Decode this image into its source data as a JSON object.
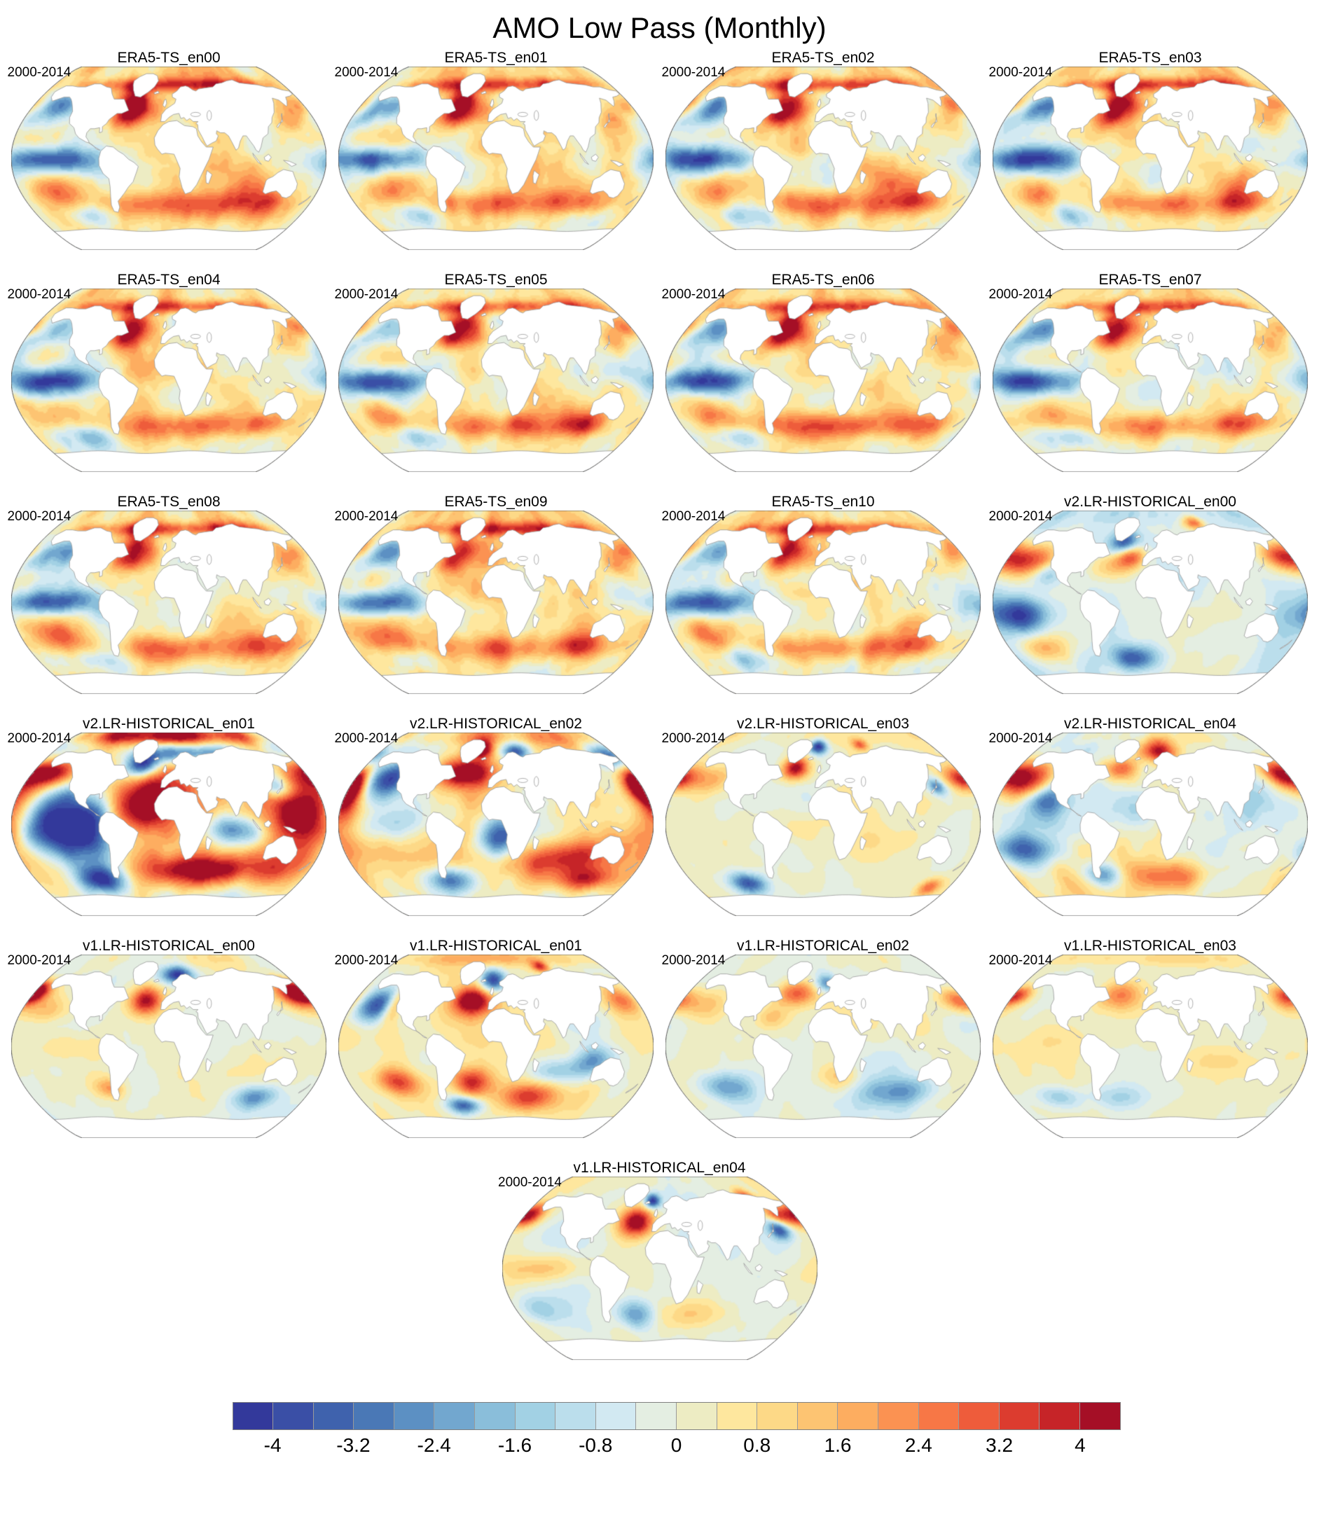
{
  "figure": {
    "title": "AMO Low Pass (Monthly)"
  },
  "colorbar": {
    "tick_labels": [
      "-4",
      "-3.2",
      "-2.4",
      "-1.6",
      "-0.8",
      "0",
      "0.8",
      "1.6",
      "2.4",
      "3.2",
      "4"
    ],
    "vmin": -4.4,
    "vmax": 4.4,
    "step": 0.4,
    "colors": [
      "#33399b",
      "#3a4fa6",
      "#3f62ad",
      "#4a78b6",
      "#5c90c3",
      "#72a7cf",
      "#8abeda",
      "#a2d1e4",
      "#bbdeec",
      "#d2e9f2",
      "#e4eee2",
      "#edecc3",
      "#fee79e",
      "#fdd987",
      "#fdc472",
      "#fdad60",
      "#fb9252",
      "#f77746",
      "#ee5c3b",
      "#dc3c2f",
      "#c62428",
      "#a50f26"
    ]
  },
  "feature_sets": {
    "era5": [
      [
        0,
        86,
        200,
        7,
        0.7
      ],
      [
        -50,
        72,
        34,
        5,
        2.8
      ],
      [
        30,
        72,
        45,
        5,
        2.6
      ],
      [
        115,
        72,
        40,
        5,
        2.4
      ],
      [
        -125,
        71,
        22,
        4,
        1.8
      ],
      [
        -45,
        57,
        16,
        9,
        3.2
      ],
      [
        -55,
        40,
        14,
        8,
        2.6
      ],
      [
        -28,
        46,
        20,
        10,
        1.6
      ],
      [
        -20,
        14,
        26,
        12,
        1.0
      ],
      [
        -115,
        0,
        36,
        9,
        -2.8
      ],
      [
        -155,
        -2,
        28,
        8,
        -2.2
      ],
      [
        -172,
        42,
        14,
        12,
        -1.4
      ],
      [
        -140,
        50,
        20,
        10,
        -2.6
      ],
      [
        176,
        51,
        16,
        9,
        2.8
      ],
      [
        146,
        36,
        14,
        9,
        1.4
      ],
      [
        15,
        -45,
        80,
        9,
        2.4
      ],
      [
        -135,
        -33,
        22,
        10,
        1.9
      ],
      [
        -105,
        -55,
        25,
        8,
        -1.7
      ],
      [
        90,
        -28,
        28,
        12,
        1.2
      ],
      [
        120,
        -43,
        22,
        9,
        1.7
      ],
      [
        62,
        -8,
        20,
        10,
        0.8
      ]
    ]
  },
  "panels": [
    {
      "title": "ERA5-TS_en00",
      "period": "2000-2014",
      "render": {
        "base": "era5",
        "seed": 11,
        "amp": 1.15,
        "bias": 0.3,
        "freq": 10,
        "features": []
      }
    },
    {
      "title": "ERA5-TS_en01",
      "period": "2000-2014",
      "render": {
        "base": "era5",
        "seed": 12,
        "amp": 1.15,
        "bias": 0.3,
        "freq": 10,
        "features": []
      }
    },
    {
      "title": "ERA5-TS_en02",
      "period": "2000-2014",
      "render": {
        "base": "era5",
        "seed": 13,
        "amp": 1.15,
        "bias": 0.35,
        "freq": 10,
        "features": []
      }
    },
    {
      "title": "ERA5-TS_en03",
      "period": "2000-2014",
      "render": {
        "base": "era5",
        "seed": 14,
        "amp": 1.15,
        "bias": 0.25,
        "freq": 10,
        "features": []
      }
    },
    {
      "title": "ERA5-TS_en04",
      "period": "2000-2014",
      "render": {
        "base": "era5",
        "seed": 15,
        "amp": 1.15,
        "bias": 0.2,
        "freq": 10,
        "features": []
      }
    },
    {
      "title": "ERA5-TS_en05",
      "period": "2000-2014",
      "render": {
        "base": "era5",
        "seed": 16,
        "amp": 1.15,
        "bias": 0.25,
        "freq": 10,
        "features": []
      }
    },
    {
      "title": "ERA5-TS_en06",
      "period": "2000-2014",
      "render": {
        "base": "era5",
        "seed": 17,
        "amp": 1.15,
        "bias": 0.3,
        "freq": 10,
        "features": []
      }
    },
    {
      "title": "ERA5-TS_en07",
      "period": "2000-2014",
      "render": {
        "base": "era5",
        "seed": 18,
        "amp": 1.0,
        "bias": 0.05,
        "freq": 10,
        "features": []
      }
    },
    {
      "title": "ERA5-TS_en08",
      "period": "2000-2014",
      "render": {
        "base": "era5",
        "seed": 19,
        "amp": 1.15,
        "bias": 0.25,
        "freq": 10,
        "features": []
      }
    },
    {
      "title": "ERA5-TS_en09",
      "period": "2000-2014",
      "render": {
        "base": "era5",
        "seed": 20,
        "amp": 1.15,
        "bias": 0.3,
        "freq": 10,
        "features": []
      }
    },
    {
      "title": "ERA5-TS_en10",
      "period": "2000-2014",
      "render": {
        "base": "era5",
        "seed": 21,
        "amp": 1.15,
        "bias": 0.15,
        "freq": 10,
        "features": []
      }
    },
    {
      "title": "v2.LR-HISTORICAL_en00",
      "period": "2000-2014",
      "render": {
        "base": null,
        "seed": 31,
        "amp": 1.1,
        "bias": -0.35,
        "freq": 5,
        "features": [
          [
            -150,
            40,
            24,
            12,
            3.6
          ],
          [
            -122,
            28,
            14,
            9,
            -2.2
          ],
          [
            -35,
            58,
            15,
            8,
            -3.6
          ],
          [
            -25,
            46,
            13,
            8,
            3.4
          ],
          [
            -45,
            34,
            20,
            10,
            1.6
          ],
          [
            72,
            78,
            12,
            5,
            3.2
          ],
          [
            166,
            45,
            20,
            10,
            3.6
          ],
          [
            -152,
            -12,
            28,
            12,
            -3.4
          ],
          [
            -138,
            -45,
            22,
            10,
            2.0
          ],
          [
            -22,
            -55,
            22,
            9,
            -3.4
          ],
          [
            80,
            -12,
            26,
            10,
            0.7
          ],
          [
            0,
            86,
            200,
            6,
            -0.5
          ]
        ]
      }
    },
    {
      "title": "v2.LR-HISTORICAL_en01",
      "period": "2000-2014",
      "render": {
        "base": null,
        "seed": 32,
        "amp": 3.0,
        "bias": 0.5,
        "freq": 4,
        "features": [
          [
            -130,
            -2,
            45,
            26,
            -5
          ],
          [
            -152,
            50,
            24,
            10,
            5
          ],
          [
            -28,
            22,
            30,
            20,
            5
          ],
          [
            -36,
            58,
            17,
            8,
            -5
          ],
          [
            25,
            70,
            55,
            7,
            -4.5
          ],
          [
            150,
            8,
            32,
            24,
            5
          ],
          [
            132,
            36,
            13,
            8,
            -3.5
          ],
          [
            55,
            -45,
            60,
            12,
            5
          ],
          [
            -92,
            -55,
            24,
            10,
            -4.5
          ],
          [
            70,
            -6,
            24,
            10,
            -4
          ],
          [
            0,
            87,
            200,
            6,
            3
          ]
        ]
      }
    },
    {
      "title": "v2.LR-HISTORICAL_en02",
      "period": "2000-2014",
      "render": {
        "base": null,
        "seed": 33,
        "amp": 1.7,
        "bias": 0.45,
        "freq": 5,
        "features": [
          [
            -142,
            44,
            22,
            12,
            -4.2
          ],
          [
            -176,
            28,
            12,
            18,
            3.6
          ],
          [
            -40,
            50,
            26,
            10,
            4.2
          ],
          [
            -22,
            74,
            12,
            6,
            4.2
          ],
          [
            30,
            71,
            14,
            6,
            -3.8
          ],
          [
            -118,
            -2,
            34,
            12,
            -1.8
          ],
          [
            4,
            -12,
            16,
            14,
            -4
          ],
          [
            72,
            -35,
            46,
            14,
            4
          ],
          [
            -58,
            -55,
            24,
            9,
            -3.8
          ],
          [
            168,
            66,
            18,
            8,
            -3.8
          ],
          [
            177,
            38,
            14,
            10,
            4
          ],
          [
            125,
            -55,
            30,
            8,
            3
          ],
          [
            0,
            86,
            200,
            6,
            1.2
          ]
        ]
      }
    },
    {
      "title": "v2.LR-HISTORICAL_en03",
      "period": "2000-2014",
      "render": {
        "base": null,
        "seed": 34,
        "amp": 0.65,
        "bias": 0.05,
        "freq": 5,
        "features": [
          [
            -37,
            55,
            13,
            8,
            4.4
          ],
          [
            -8,
            76,
            10,
            5,
            -4.4
          ],
          [
            62,
            78,
            9,
            4,
            2.6
          ],
          [
            -146,
            44,
            20,
            10,
            1.9
          ],
          [
            176,
            44,
            14,
            8,
            3.4
          ],
          [
            140,
            37,
            8,
            6,
            -3
          ],
          [
            -103,
            -58,
            17,
            7,
            -3.6
          ],
          [
            152,
            -62,
            11,
            6,
            2.6
          ],
          [
            -30,
            0,
            26,
            12,
            0.8
          ],
          [
            82,
            -20,
            30,
            12,
            0.7
          ],
          [
            0,
            86,
            200,
            6,
            0.5
          ]
        ]
      }
    },
    {
      "title": "v2.LR-HISTORICAL_en04",
      "period": "2000-2014",
      "render": {
        "base": null,
        "seed": 35,
        "amp": 1.5,
        "bias": -0.25,
        "freq": 5,
        "features": [
          [
            -153,
            42,
            24,
            12,
            3.9
          ],
          [
            -120,
            24,
            18,
            12,
            -3.6
          ],
          [
            -40,
            55,
            18,
            8,
            3.6
          ],
          [
            12,
            72,
            26,
            8,
            4.4
          ],
          [
            -25,
            40,
            15,
            10,
            1.4
          ],
          [
            172,
            50,
            18,
            10,
            3.6
          ],
          [
            -148,
            -25,
            28,
            12,
            -3.6
          ],
          [
            22,
            -50,
            40,
            10,
            2.4
          ],
          [
            -62,
            -50,
            18,
            8,
            -3
          ],
          [
            -118,
            0,
            28,
            10,
            -1
          ],
          [
            0,
            86,
            200,
            6,
            0.8
          ]
        ]
      }
    },
    {
      "title": "v1.LR-HISTORICAL_en00",
      "period": "2000-2014",
      "render": {
        "base": null,
        "seed": 41,
        "amp": 0.75,
        "bias": -0.15,
        "freq": 5,
        "features": [
          [
            -28,
            45,
            15,
            10,
            4.0
          ],
          [
            14,
            70,
            17,
            6,
            -4.2
          ],
          [
            -177,
            53,
            12,
            7,
            3.4
          ],
          [
            -150,
            35,
            24,
            10,
            1.6
          ],
          [
            167,
            52,
            18,
            10,
            4.4
          ],
          [
            -120,
            0,
            38,
            10,
            0.8
          ],
          [
            112,
            -50,
            20,
            8,
            -2.6
          ],
          [
            -74,
            -41,
            13,
            7,
            1.9
          ],
          [
            0,
            86,
            200,
            6,
            0.4
          ]
        ]
      }
    },
    {
      "title": "v1.LR-HISTORICAL_en01",
      "period": "2000-2014",
      "render": {
        "base": null,
        "seed": 42,
        "amp": 1.0,
        "bias": 0.25,
        "freq": 5,
        "features": [
          [
            -145,
            40,
            24,
            12,
            -4.4
          ],
          [
            -127,
            40,
            9,
            12,
            3.9
          ],
          [
            -30,
            45,
            17,
            10,
            4.6
          ],
          [
            -4,
            65,
            14,
            8,
            -4.6
          ],
          [
            74,
            78,
            10,
            4,
            3.4
          ],
          [
            0,
            86,
            200,
            5,
            1.2
          ],
          [
            164,
            45,
            17,
            10,
            2.4
          ],
          [
            -120,
            -35,
            20,
            10,
            3.2
          ],
          [
            -30,
            -35,
            17,
            10,
            3.4
          ],
          [
            42,
            -50,
            24,
            10,
            3.2
          ],
          [
            -44,
            -58,
            17,
            6,
            -3.6
          ],
          [
            72,
            -25,
            28,
            10,
            -2.2
          ],
          [
            112,
            -14,
            18,
            10,
            -2.4
          ]
        ]
      }
    },
    {
      "title": "v1.LR-HISTORICAL_en02",
      "period": "2000-2014",
      "render": {
        "base": null,
        "seed": 43,
        "amp": 0.75,
        "bias": -0.1,
        "freq": 5,
        "features": [
          [
            -35,
            52,
            20,
            9,
            3.0
          ],
          [
            5,
            62,
            11,
            6,
            -2.6
          ],
          [
            -150,
            40,
            24,
            10,
            1.5
          ],
          [
            172,
            45,
            15,
            8,
            2.6
          ],
          [
            -120,
            -40,
            24,
            10,
            -2.6
          ],
          [
            92,
            -45,
            30,
            10,
            -2.2
          ],
          [
            20,
            -30,
            20,
            10,
            1.5
          ],
          [
            -60,
            28,
            14,
            8,
            1.4
          ],
          [
            0,
            86,
            200,
            6,
            0.3
          ]
        ]
      }
    },
    {
      "title": "v1.LR-HISTORICAL_en03",
      "period": "2000-2014",
      "render": {
        "base": null,
        "seed": 44,
        "amp": 0.5,
        "bias": 0.05,
        "freq": 5,
        "features": [
          [
            -40,
            50,
            20,
            10,
            2.2
          ],
          [
            -172,
            50,
            12,
            6,
            2.6
          ],
          [
            172,
            45,
            12,
            8,
            2.0
          ],
          [
            0,
            86,
            200,
            5,
            0.8
          ],
          [
            -120,
            -50,
            22,
            8,
            -1.8
          ],
          [
            82,
            -15,
            30,
            12,
            0.9
          ],
          [
            -120,
            5,
            30,
            12,
            0.6
          ],
          [
            -40,
            -50,
            25,
            8,
            -1.2
          ]
        ]
      }
    },
    {
      "title": "v1.LR-HISTORICAL_en04",
      "period": "2000-2014",
      "render": {
        "base": null,
        "seed": 45,
        "amp": 0.75,
        "bias": -0.1,
        "freq": 5,
        "features": [
          [
            -176,
            52,
            14,
            8,
            4.4
          ],
          [
            -30,
            45,
            15,
            10,
            4.6
          ],
          [
            -11,
            66,
            8,
            5,
            -4.4
          ],
          [
            130,
            68,
            11,
            6,
            4.2
          ],
          [
            148,
            38,
            9,
            7,
            -3.6
          ],
          [
            155,
            52,
            11,
            7,
            2.8
          ],
          [
            -130,
            0,
            34,
            10,
            1.8
          ],
          [
            -33,
            -45,
            17,
            10,
            -2.8
          ],
          [
            -150,
            -40,
            20,
            10,
            -1.3
          ],
          [
            42,
            -45,
            30,
            10,
            1.2
          ],
          [
            0,
            86,
            200,
            6,
            0.3
          ]
        ]
      }
    }
  ],
  "chart_data": {
    "type": "heatmap",
    "title": "AMO Low Pass (Monthly)",
    "description_period": "2000-2014",
    "panel_titles": [
      "ERA5-TS_en00",
      "ERA5-TS_en01",
      "ERA5-TS_en02",
      "ERA5-TS_en03",
      "ERA5-TS_en04",
      "ERA5-TS_en05",
      "ERA5-TS_en06",
      "ERA5-TS_en07",
      "ERA5-TS_en08",
      "ERA5-TS_en09",
      "ERA5-TS_en10",
      "v2.LR-HISTORICAL_en00",
      "v2.LR-HISTORICAL_en01",
      "v2.LR-HISTORICAL_en02",
      "v2.LR-HISTORICAL_en03",
      "v2.LR-HISTORICAL_en04",
      "v1.LR-HISTORICAL_en00",
      "v1.LR-HISTORICAL_en01",
      "v1.LR-HISTORICAL_en02",
      "v1.LR-HISTORICAL_en03",
      "v1.LR-HISTORICAL_en04"
    ],
    "colorbar_ticks": [
      -4,
      -3.2,
      -2.4,
      -1.6,
      -0.8,
      0,
      0.8,
      1.6,
      2.4,
      3.2,
      4
    ],
    "colorbar_range": [
      -4.4,
      4.4
    ],
    "legend_position": "bottom"
  }
}
